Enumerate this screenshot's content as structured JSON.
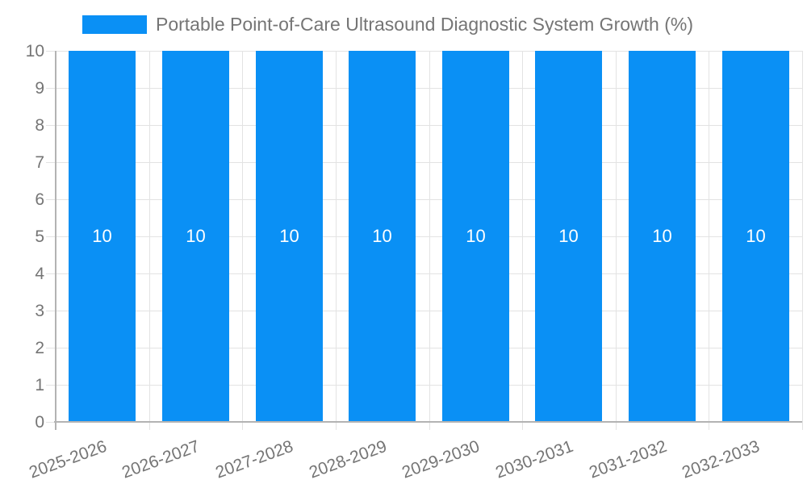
{
  "legend": {
    "label": "Portable Point-of-Care Ultrasound Diagnostic System Growth (%)"
  },
  "chart_data": {
    "type": "bar",
    "title": "Portable Point-of-Care Ultrasound Diagnostic System Growth (%)",
    "series": [
      {
        "name": "Portable Point-of-Care Ultrasound Diagnostic System Growth (%)",
        "values": [
          10,
          10,
          10,
          10,
          10,
          10,
          10,
          10
        ],
        "data_labels": [
          "10",
          "10",
          "10",
          "10",
          "10",
          "10",
          "10",
          "10"
        ]
      }
    ],
    "categories": [
      "2025-2026",
      "2026-2027",
      "2027-2028",
      "2028-2029",
      "2029-2030",
      "2030-2031",
      "2031-2032",
      "2032-2033"
    ],
    "xlabel": "",
    "ylabel": "",
    "ylim": [
      0,
      10
    ],
    "y_ticks": [
      0,
      1,
      2,
      3,
      4,
      5,
      6,
      7,
      8,
      9,
      10
    ],
    "y_tick_labels": [
      "0",
      "1",
      "2",
      "3",
      "4",
      "5",
      "6",
      "7",
      "8",
      "9",
      "10"
    ],
    "grid": true,
    "legend_position": "top",
    "x_label_rotation_deg": -20,
    "colors": {
      "bar": "#0a90f5",
      "bar_label": "#ffffff",
      "axis_text": "#757575",
      "grid_line": "#e3e3e3",
      "axis_line": "#b3b3b3",
      "background": "#ffffff"
    }
  }
}
